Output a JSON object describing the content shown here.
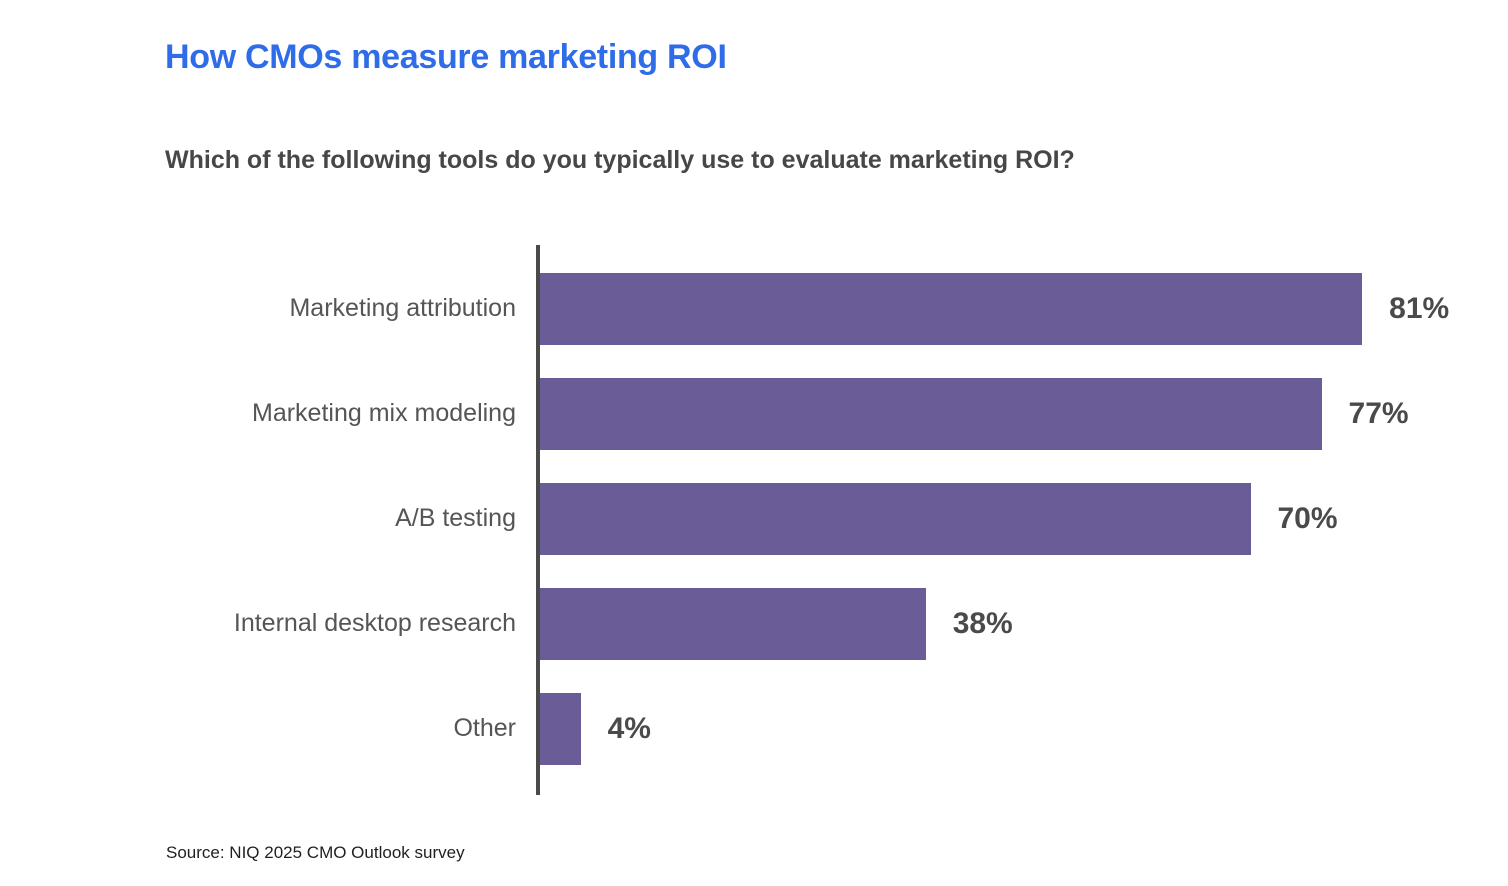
{
  "title": "How CMOs measure marketing ROI",
  "subtitle": "Which of the following tools do you typically use to evaluate marketing ROI?",
  "source": "Source: NIQ 2025 CMO Outlook survey",
  "colors": {
    "title": "#2F6DE8",
    "bar": "#695C97",
    "axis": "#4A4A4A",
    "category_label": "#555555",
    "value_label": "#4A4A4A"
  },
  "chart_data": {
    "type": "bar",
    "orientation": "horizontal",
    "title": "How CMOs measure marketing ROI",
    "subtitle": "Which of the following tools do you typically use to evaluate marketing ROI?",
    "categories": [
      "Marketing attribution",
      "Marketing mix modeling",
      "A/B testing",
      "Internal desktop research",
      "Other"
    ],
    "values": [
      81,
      77,
      70,
      38,
      4
    ],
    "value_labels": [
      "81%",
      "77%",
      "70%",
      "38%",
      "4%"
    ],
    "xlabel": "",
    "ylabel": "",
    "xlim": [
      0,
      100
    ],
    "grid": false,
    "legend": false,
    "annotations": [
      "Source: NIQ 2025 CMO Outlook survey"
    ]
  }
}
